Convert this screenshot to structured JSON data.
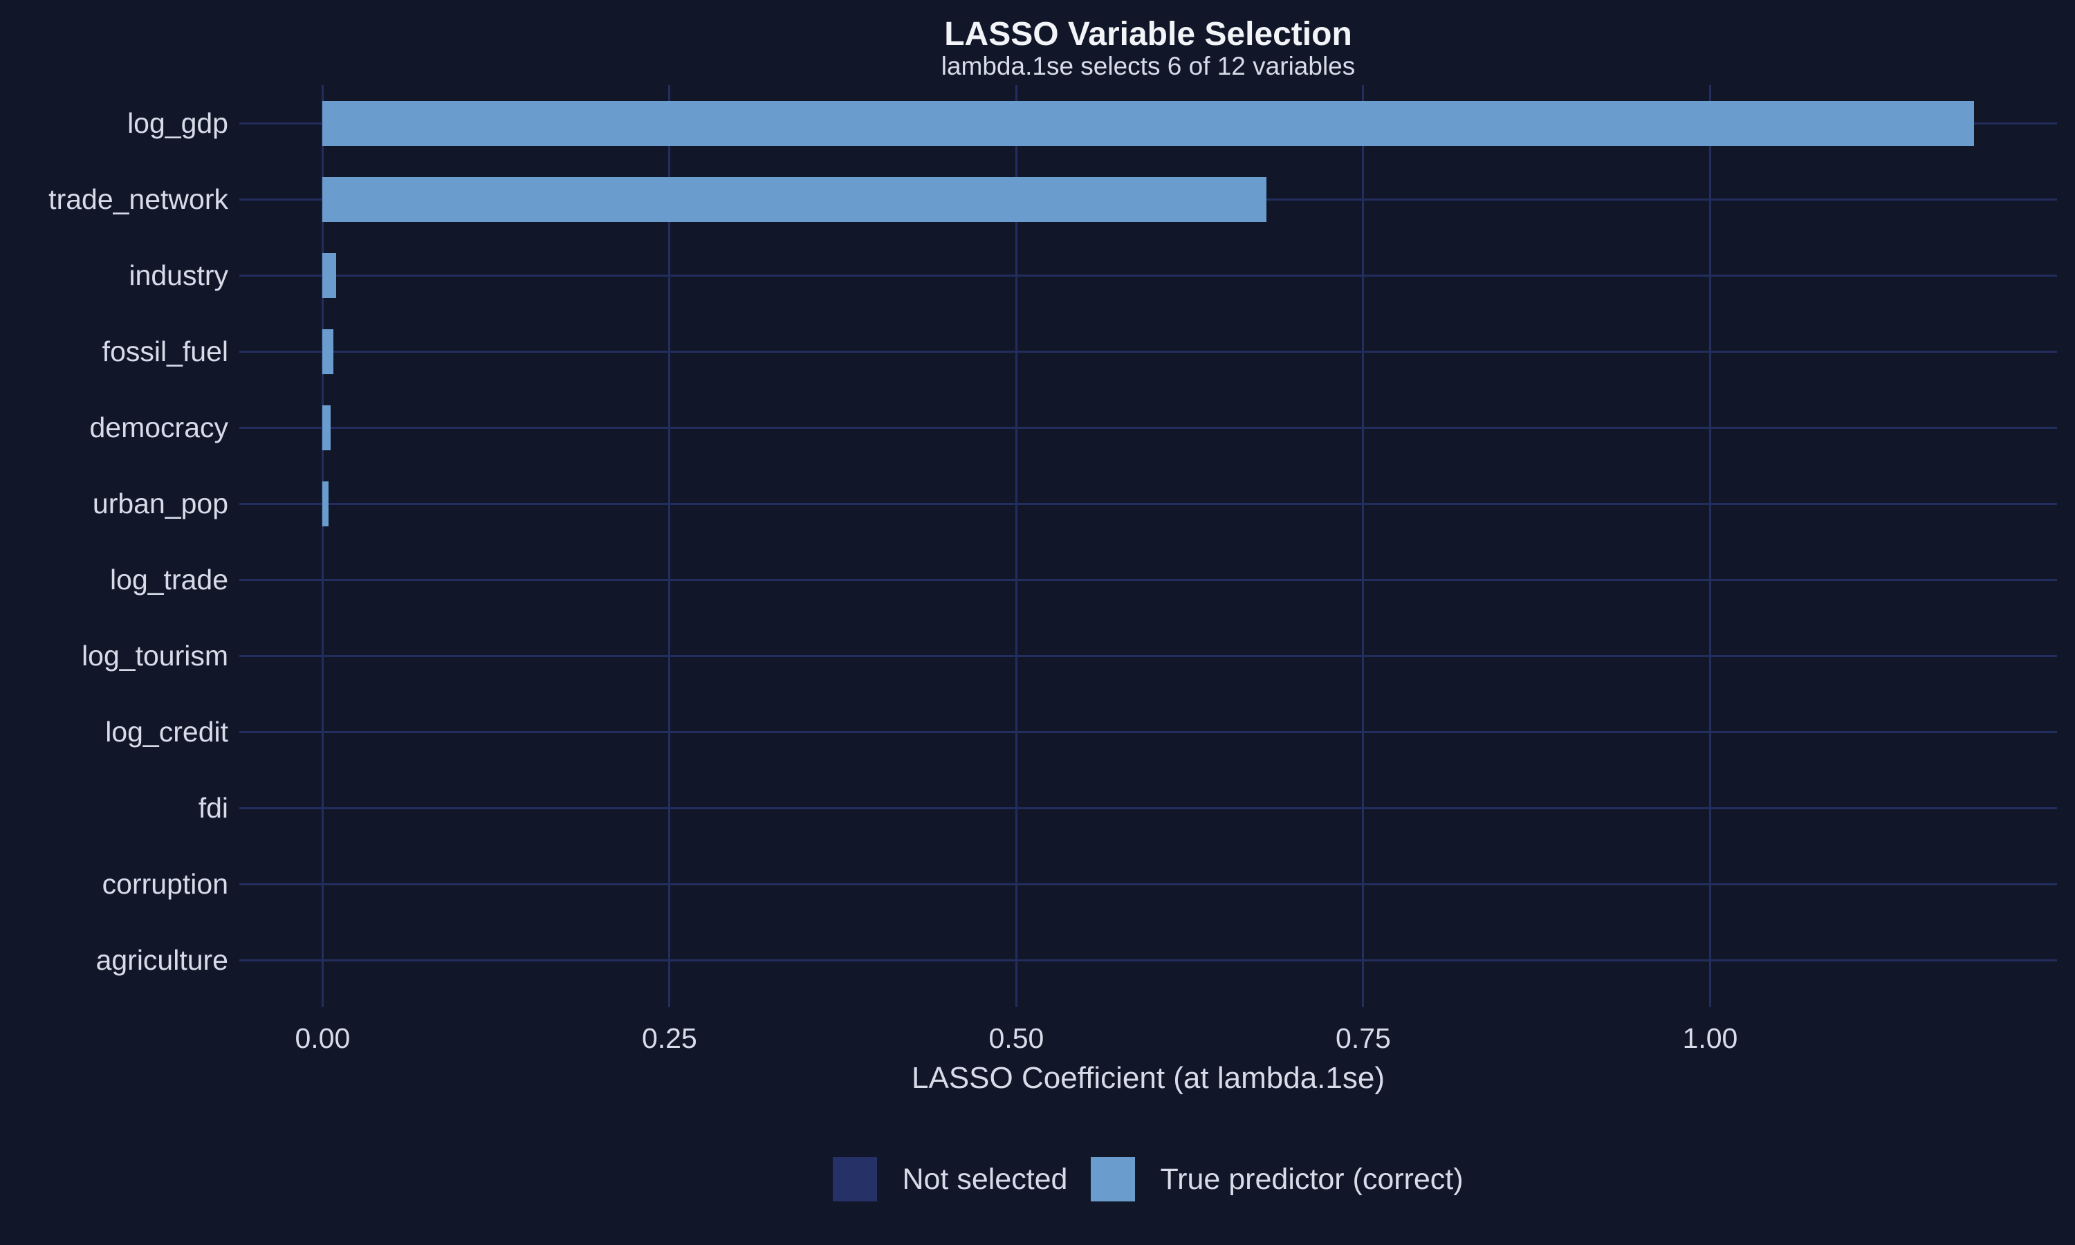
{
  "title": "LASSO Variable Selection",
  "subtitle": "lambda.1se selects 6 of 12 variables",
  "colors": {
    "background": "#111729",
    "grid": "#232d5e",
    "bar_selected": "#6a9cce",
    "bar_not_selected": "#263168",
    "text": "#d7dce8",
    "title_text": "#f2f4f8"
  },
  "chart_data": {
    "type": "bar",
    "orientation": "horizontal",
    "title": "LASSO Variable Selection",
    "subtitle": "lambda.1se selects 6 of 12 variables",
    "xlabel": "LASSO Coefficient (at lambda.1se)",
    "ylabel": "",
    "categories": [
      "log_gdp",
      "trade_network",
      "industry",
      "fossil_fuel",
      "democracy",
      "urban_pop",
      "log_trade",
      "log_tourism",
      "log_credit",
      "fdi",
      "corruption",
      "agriculture"
    ],
    "values": [
      1.19,
      0.68,
      0.01,
      0.008,
      0.006,
      0.0045,
      0,
      0,
      0,
      0,
      0,
      0
    ],
    "selected": [
      true,
      true,
      true,
      true,
      true,
      true,
      false,
      false,
      false,
      false,
      false,
      false
    ],
    "xlim": [
      -0.06,
      1.25
    ],
    "x_ticks": [
      0.0,
      0.25,
      0.5,
      0.75,
      1.0
    ],
    "x_tick_labels": [
      "0.00",
      "0.25",
      "0.50",
      "0.75",
      "1.00"
    ],
    "grid": true,
    "legend": {
      "position": "bottom",
      "entries": [
        {
          "label": "Not selected",
          "color": "#263168",
          "selected": false
        },
        {
          "label": "True predictor (correct)",
          "color": "#6a9cce",
          "selected": true
        }
      ]
    }
  }
}
